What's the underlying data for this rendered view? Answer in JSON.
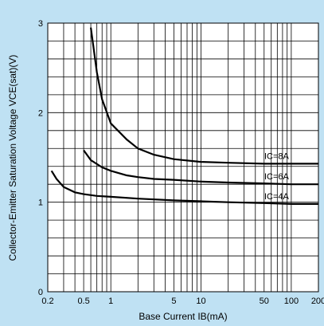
{
  "chart_data": {
    "type": "line",
    "xlabel": "Base Current IB(mA)",
    "ylabel": "Collector-Emitter Saturation Voltage VCE(sat)(V)",
    "xscale": "log",
    "xlim": [
      0.2,
      200
    ],
    "ylim": [
      0,
      3
    ],
    "x_ticks": [
      {
        "value": 0.2,
        "label": "0.2"
      },
      {
        "value": 0.5,
        "label": "0.5"
      },
      {
        "value": 1,
        "label": "1"
      },
      {
        "value": 5,
        "label": "5"
      },
      {
        "value": 10,
        "label": "10"
      },
      {
        "value": 50,
        "label": "50"
      },
      {
        "value": 100,
        "label": "100"
      },
      {
        "value": 200,
        "label": "200"
      }
    ],
    "y_ticks": [
      {
        "value": 0,
        "label": "0"
      },
      {
        "value": 1,
        "label": "1"
      },
      {
        "value": 2,
        "label": "2"
      },
      {
        "value": 3,
        "label": "3"
      }
    ],
    "grid": true,
    "series": [
      {
        "name": "IC=8A",
        "x": [
          0.6,
          0.7,
          0.8,
          1,
          1.5,
          2,
          3,
          5,
          10,
          20,
          50,
          100,
          200
        ],
        "y": [
          2.95,
          2.45,
          2.15,
          1.88,
          1.7,
          1.6,
          1.53,
          1.48,
          1.45,
          1.44,
          1.43,
          1.43,
          1.43
        ]
      },
      {
        "name": "IC=6A",
        "x": [
          0.5,
          0.6,
          0.8,
          1,
          1.5,
          2,
          3,
          5,
          10,
          20,
          50,
          100,
          200
        ],
        "y": [
          1.58,
          1.47,
          1.39,
          1.35,
          1.3,
          1.28,
          1.26,
          1.25,
          1.23,
          1.22,
          1.21,
          1.2,
          1.2
        ]
      },
      {
        "name": "IC=4A",
        "x": [
          0.22,
          0.25,
          0.3,
          0.4,
          0.5,
          0.7,
          1,
          2,
          5,
          10,
          20,
          50,
          100,
          200
        ],
        "y": [
          1.35,
          1.26,
          1.17,
          1.11,
          1.09,
          1.07,
          1.06,
          1.04,
          1.02,
          1.01,
          1.0,
          0.99,
          0.98,
          0.98
        ]
      }
    ]
  }
}
